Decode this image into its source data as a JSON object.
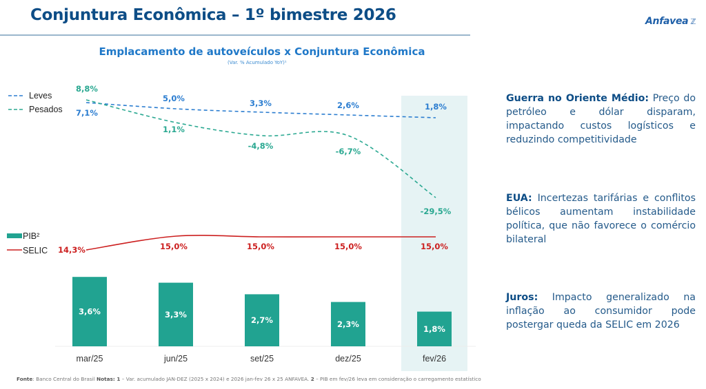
{
  "header": {
    "title": "Conjuntura Econômica – 1º bimestre 2026",
    "logo_text": "Anfavea",
    "logo_icon": "anfavea-mark-icon"
  },
  "colors": {
    "title": "#0d4d86",
    "leves": "#2b7dd0",
    "pesados": "#2aa891",
    "pib_bar": "#21a391",
    "selic": "#cc1f1f",
    "highlight": "#e6f3f4"
  },
  "chart_data": {
    "type": "bar+line",
    "title": "Emplacamento de autoveículos x Conjuntura Econômica",
    "subtitle": "(Var. % Acumulado YoY)¹",
    "categories": [
      "mar/25",
      "jun/25",
      "set/25",
      "dez/25",
      "fev/26"
    ],
    "highlighted_category": "fev/26",
    "series": [
      {
        "name": "Leves",
        "type": "line",
        "style": "dashed",
        "values": [
          7.1,
          5.0,
          3.3,
          2.6,
          1.8
        ],
        "labels": [
          "7,1%",
          "5,0%",
          "3,3%",
          "2,6%",
          "1,8%"
        ]
      },
      {
        "name": "Pesados",
        "type": "line",
        "style": "dashed",
        "values": [
          8.8,
          1.1,
          -4.8,
          -6.7,
          -29.5
        ],
        "labels": [
          "8,8%",
          "1,1%",
          "-4,8%",
          "-6,7%",
          "-29,5%"
        ]
      },
      {
        "name": "PIB²",
        "type": "bar",
        "values": [
          3.6,
          3.3,
          2.7,
          2.3,
          1.8
        ],
        "labels": [
          "3,6%",
          "3,3%",
          "2,7%",
          "2,3%",
          "1,8%"
        ]
      },
      {
        "name": "SELIC",
        "type": "line",
        "style": "solid",
        "values": [
          14.3,
          15.0,
          15.0,
          15.0,
          15.0
        ],
        "labels": [
          "14,3%",
          "15,0%",
          "15,0%",
          "15,0%",
          "15,0%"
        ]
      }
    ],
    "legend": [
      {
        "name": "Leves",
        "placement": "top-left"
      },
      {
        "name": "Pesados",
        "placement": "top-left"
      },
      {
        "name": "PIB²",
        "placement": "middle-left"
      },
      {
        "name": "SELIC",
        "placement": "middle-left"
      }
    ],
    "grid": false
  },
  "side_notes": [
    {
      "heading": "Guerra no Oriente Médio:",
      "text": " Preço do petróleo e dólar disparam, impactando custos logísticos e reduzindo competitividade"
    },
    {
      "heading": "EUA:",
      "text": " Incertezas tarifárias e conflitos bélicos aumentam instabilidade política, que não favorece o comércio bilateral"
    },
    {
      "heading": "Juros:",
      "text": " Impacto generalizado na inflação ao consumidor pode postergar queda da SELIC em 2026"
    }
  ],
  "footnote": {
    "source_label": "Fonte",
    "source_text": ": Banco Central do Brasil ",
    "notes_label": "Notas: 1",
    "notes_text1": " – Var. acumulado JAN-DEZ (2025 x 2024) e 2026 jan-fev 26 x 25 ANFAVEA. ",
    "notes_label2": "2",
    "notes_text2": " – PIB em fev/26 leva em consideração o carregamento estatístico"
  }
}
